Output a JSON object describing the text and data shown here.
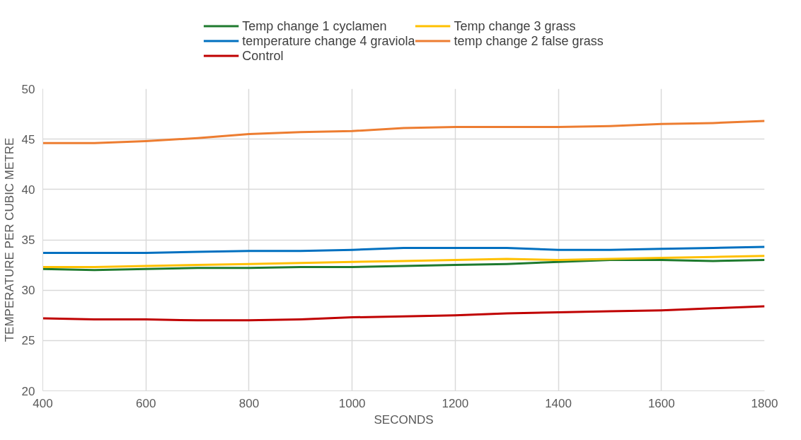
{
  "chart_data": {
    "type": "line",
    "xlabel": "SECONDS",
    "ylabel": "TEMPERATURE PER CUBIC METRE",
    "x": [
      400,
      500,
      600,
      700,
      800,
      900,
      1000,
      1100,
      1200,
      1300,
      1400,
      1500,
      1600,
      1700,
      1800
    ],
    "xlim": [
      400,
      1800
    ],
    "xticks": [
      400,
      600,
      800,
      1000,
      1200,
      1400,
      1600,
      1800
    ],
    "ylim": [
      20,
      50
    ],
    "yticks": [
      20,
      25,
      30,
      35,
      40,
      45,
      50
    ],
    "grid": true,
    "legend": "top",
    "marker": "none",
    "line_style": "solid",
    "series": [
      {
        "name": "Temp change 1 cyclamen",
        "color": "#1e7a2e",
        "values": [
          32.1,
          32.0,
          32.1,
          32.2,
          32.2,
          32.3,
          32.3,
          32.4,
          32.5,
          32.6,
          32.8,
          33.0,
          33.0,
          32.9,
          33.0
        ]
      },
      {
        "name": "Temp change 3 grass",
        "color": "#ffc000",
        "values": [
          32.3,
          32.3,
          32.4,
          32.5,
          32.6,
          32.7,
          32.8,
          32.9,
          33.0,
          33.1,
          33.0,
          33.1,
          33.2,
          33.3,
          33.4
        ]
      },
      {
        "name": "temperature change 4 graviola",
        "color": "#0070c0",
        "values": [
          33.7,
          33.7,
          33.7,
          33.8,
          33.9,
          33.9,
          34.0,
          34.2,
          34.2,
          34.2,
          34.0,
          34.0,
          34.1,
          34.2,
          34.3
        ]
      },
      {
        "name": "temp change 2 false grass",
        "color": "#ed7d31",
        "values": [
          44.6,
          44.6,
          44.8,
          45.1,
          45.5,
          45.7,
          45.8,
          46.1,
          46.2,
          46.2,
          46.2,
          46.3,
          46.5,
          46.6,
          46.8
        ]
      },
      {
        "name": "Control",
        "color": "#c00000",
        "values": [
          27.2,
          27.1,
          27.1,
          27.0,
          27.0,
          27.1,
          27.3,
          27.4,
          27.5,
          27.7,
          27.8,
          27.9,
          28.0,
          28.2,
          28.4
        ]
      }
    ]
  }
}
